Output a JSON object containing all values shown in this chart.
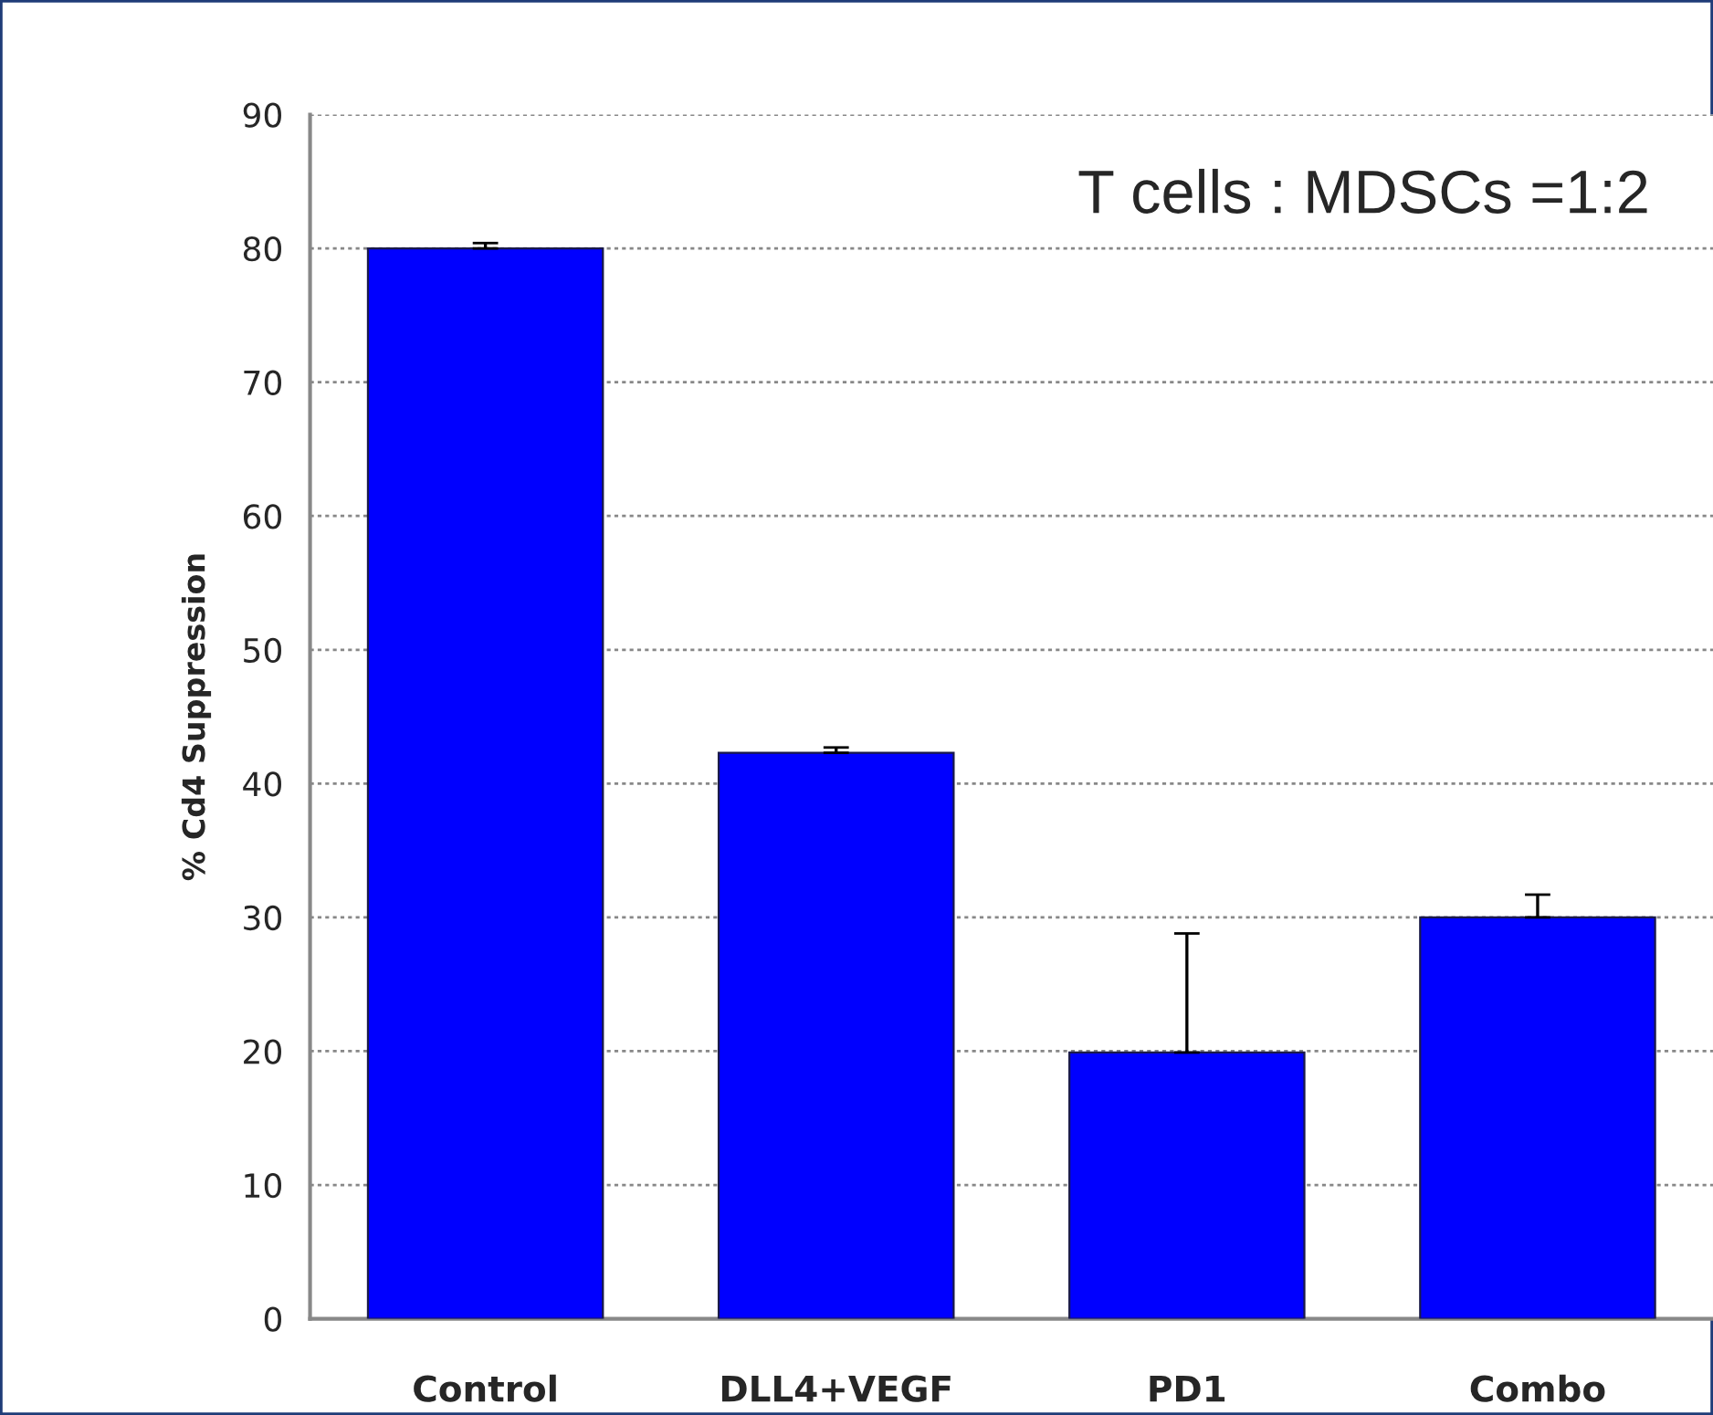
{
  "chart_data": {
    "type": "bar",
    "ylabel": "% Cd4 Suppression",
    "categories": [
      "Control",
      "DLL4+VEGF",
      "PD1",
      "Combo"
    ],
    "values": [
      80,
      42.3,
      19.9,
      30
    ],
    "errors": [
      [
        80,
        80.4
      ],
      [
        42.3,
        42.7
      ],
      [
        19.9,
        28.8
      ],
      [
        30,
        31.7
      ]
    ],
    "color": "#0000ff",
    "ylim": [
      0,
      90
    ],
    "yticks": [
      0,
      10,
      20,
      30,
      40,
      50,
      60,
      70,
      80,
      90
    ],
    "grid": "y",
    "annotations": [
      "T cells : MDSCs =1:2"
    ]
  }
}
